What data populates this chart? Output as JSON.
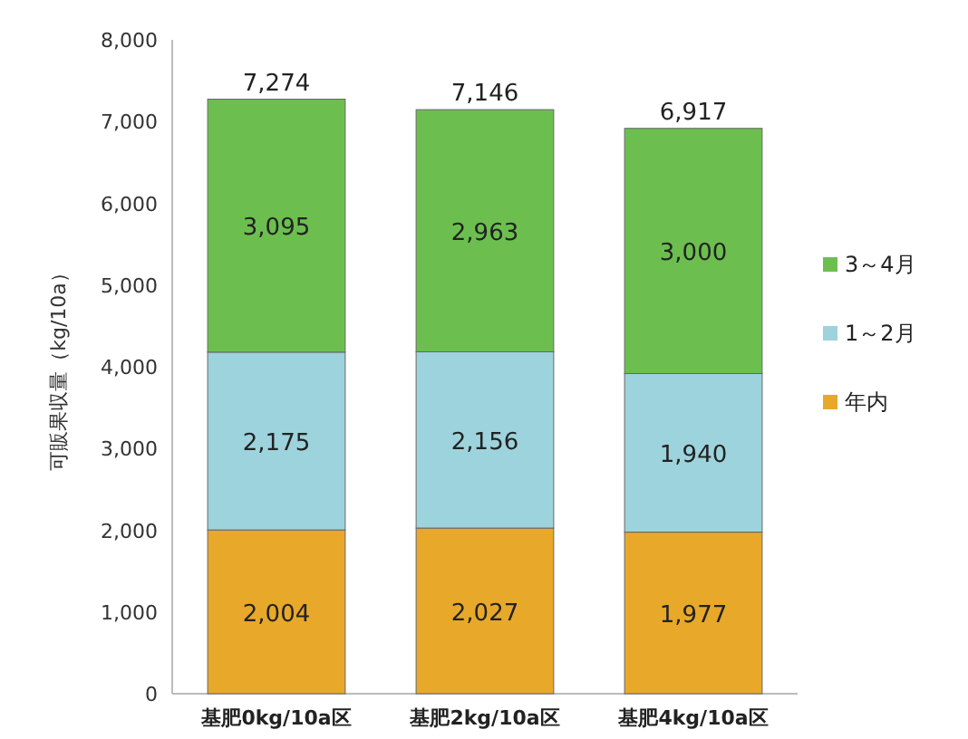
{
  "chart_data": {
    "type": "bar",
    "stacked": true,
    "ylabel": "可販果収量（kg/10a）",
    "categories": [
      "基肥0kg/10a区",
      "基肥2kg/10a区",
      "基肥4kg/10a区"
    ],
    "series": [
      {
        "name": "年内",
        "color": "#e8a82a",
        "values": [
          2004,
          2027,
          1977
        ],
        "value_labels": [
          "2,004",
          "2,027",
          "1,977"
        ]
      },
      {
        "name": "1～2月",
        "color": "#9dd3dc",
        "values": [
          2175,
          2156,
          1940
        ],
        "value_labels": [
          "2,175",
          "2,156",
          "1,940"
        ]
      },
      {
        "name": "3～4月",
        "color": "#6cbf4f",
        "values": [
          3095,
          2963,
          3000
        ],
        "value_labels": [
          "3,095",
          "2,963",
          "3,000"
        ]
      }
    ],
    "totals": [
      "7,274",
      "7,146",
      "6,917"
    ],
    "ylim": [
      0,
      8000
    ],
    "yticks": [
      0,
      {
        "value": 1000,
        "label": "1,000"
      },
      {
        "value": 2000,
        "label": "2,000"
      },
      {
        "value": 3000,
        "label": "3,000"
      },
      {
        "value": 4000,
        "label": "4,000"
      },
      {
        "value": 5000,
        "label": "5,000"
      },
      {
        "value": 6000,
        "label": "6,000"
      },
      {
        "value": 7000,
        "label": "7,000"
      },
      {
        "value": 8000,
        "label": "8,000"
      }
    ],
    "legend": "right"
  }
}
